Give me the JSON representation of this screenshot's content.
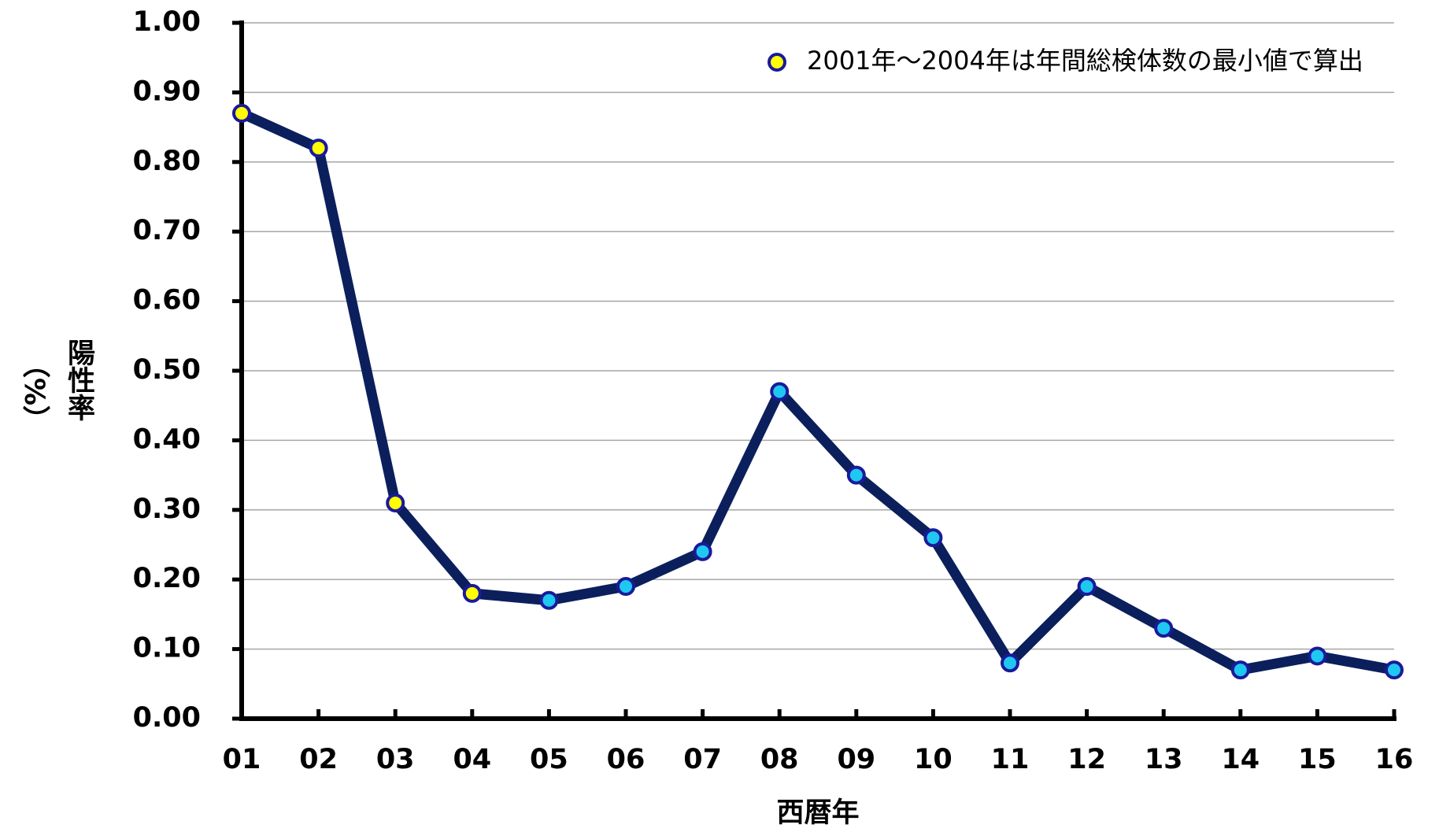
{
  "chart_data": {
    "type": "line",
    "xlabel": "西暦年",
    "ylabel": "陽性率",
    "yunit": "（%）",
    "categories": [
      "01",
      "02",
      "03",
      "04",
      "05",
      "06",
      "07",
      "08",
      "09",
      "10",
      "11",
      "12",
      "13",
      "14",
      "15",
      "16"
    ],
    "series": [
      {
        "color": "#0b1f5c",
        "values": [
          0.87,
          0.82,
          0.31,
          0.18,
          0.17,
          0.19,
          0.24,
          0.47,
          0.35,
          0.26,
          0.08,
          0.19,
          0.13,
          0.07,
          0.09,
          0.07
        ],
        "point_colors": [
          "#ffff00",
          "#ffff00",
          "#ffff00",
          "#ffff00",
          "#1ec8f0",
          "#1ec8f0",
          "#1ec8f0",
          "#1ec8f0",
          "#1ec8f0",
          "#1ec8f0",
          "#1ec8f0",
          "#1ec8f0",
          "#1ec8f0",
          "#1ec8f0",
          "#1ec8f0",
          "#1ec8f0"
        ]
      }
    ],
    "legend": {
      "label": "2001年～2004年は年間総検体数の最小値で算出",
      "color": "#ffff00"
    },
    "ylim": [
      0,
      1
    ],
    "yticks": [
      {
        "value": 0,
        "label": "0.00"
      },
      {
        "value": 0.1,
        "label": "0.10"
      },
      {
        "value": 0.2,
        "label": "0.20"
      },
      {
        "value": 0.3,
        "label": "0.30"
      },
      {
        "value": 0.4,
        "label": "0.40"
      },
      {
        "value": 0.5,
        "label": "0.50"
      },
      {
        "value": 0.6,
        "label": "0.60"
      },
      {
        "value": 0.7,
        "label": "0.70"
      },
      {
        "value": 0.8,
        "label": "0.80"
      },
      {
        "value": 0.9,
        "label": "0.90"
      },
      {
        "value": 1,
        "label": "1.00"
      }
    ],
    "grid": true
  }
}
